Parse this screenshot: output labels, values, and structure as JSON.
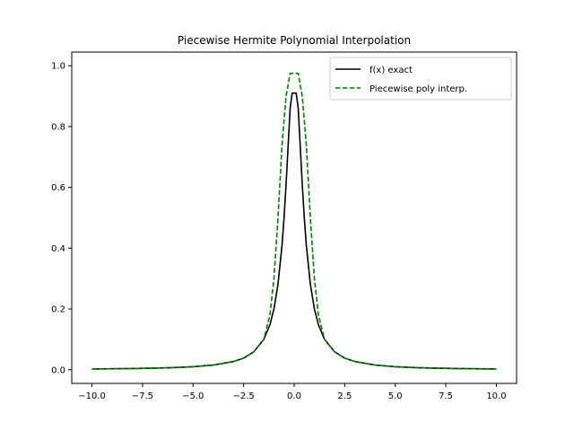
{
  "chart_data": {
    "type": "line",
    "title": "Piecewise Hermite Polynomial Interpolation",
    "xlabel": "",
    "ylabel": "",
    "xlim": [
      -11.0,
      11.0
    ],
    "ylim": [
      -0.045,
      1.045
    ],
    "xticks": [
      -10.0,
      -7.5,
      -5.0,
      -2.5,
      0.0,
      2.5,
      5.0,
      7.5,
      10.0
    ],
    "xtick_labels": [
      "−10.0",
      "−7.5",
      "−5.0",
      "−2.5",
      "0.0",
      "2.5",
      "5.0",
      "7.5",
      "10.0"
    ],
    "yticks": [
      0.0,
      0.2,
      0.4,
      0.6,
      0.8,
      1.0
    ],
    "ytick_labels": [
      "0.0",
      "0.2",
      "0.4",
      "0.6",
      "0.8",
      "1.0"
    ],
    "grid": false,
    "legend_position": "top-right",
    "series": [
      {
        "name": "f(x) exact",
        "color": "#000000",
        "style": "solid",
        "x": [
          -10,
          -9,
          -8,
          -7,
          -6,
          -5,
          -4,
          -3,
          -2.5,
          -2,
          -1.5,
          -1.2,
          -1,
          -0.8,
          -0.6,
          -0.5,
          -0.4,
          -0.3,
          -0.2,
          -0.1,
          0,
          0.1,
          0.2,
          0.3,
          0.4,
          0.5,
          0.6,
          0.8,
          1,
          1.2,
          1.5,
          2,
          2.5,
          3,
          4,
          5,
          6,
          7,
          8,
          9,
          10
        ],
        "y": [
          0.0025,
          0.0031,
          0.0039,
          0.0051,
          0.0069,
          0.0099,
          0.0154,
          0.027,
          0.038,
          0.0588,
          0.1,
          0.148,
          0.2,
          0.281,
          0.41,
          0.5,
          0.61,
          0.735,
          0.86,
          0.91,
          0.91,
          0.91,
          0.86,
          0.735,
          0.61,
          0.5,
          0.41,
          0.281,
          0.2,
          0.148,
          0.1,
          0.0588,
          0.038,
          0.027,
          0.0154,
          0.0099,
          0.0069,
          0.0051,
          0.0039,
          0.0031,
          0.0025
        ]
      },
      {
        "name": "Piecewise poly interp.",
        "color": "#008000",
        "style": "dashed",
        "x": [
          -10,
          -8,
          -6,
          -5,
          -4,
          -3,
          -2.5,
          -2,
          -1.5,
          -1.2,
          -1,
          -0.8,
          -0.6,
          -0.4,
          -0.2,
          -0.1,
          0.1,
          0.2,
          0.4,
          0.6,
          0.8,
          1,
          1.2,
          1.5,
          2,
          2.5,
          3,
          4,
          5,
          6,
          8,
          10
        ],
        "y": [
          0.0025,
          0.0039,
          0.0069,
          0.0099,
          0.0154,
          0.027,
          0.038,
          0.0588,
          0.1,
          0.18,
          0.3,
          0.5,
          0.74,
          0.9,
          0.975,
          0.975,
          0.975,
          0.975,
          0.9,
          0.74,
          0.5,
          0.3,
          0.18,
          0.1,
          0.0588,
          0.038,
          0.027,
          0.0154,
          0.0099,
          0.0069,
          0.0039,
          0.0025
        ]
      }
    ]
  }
}
